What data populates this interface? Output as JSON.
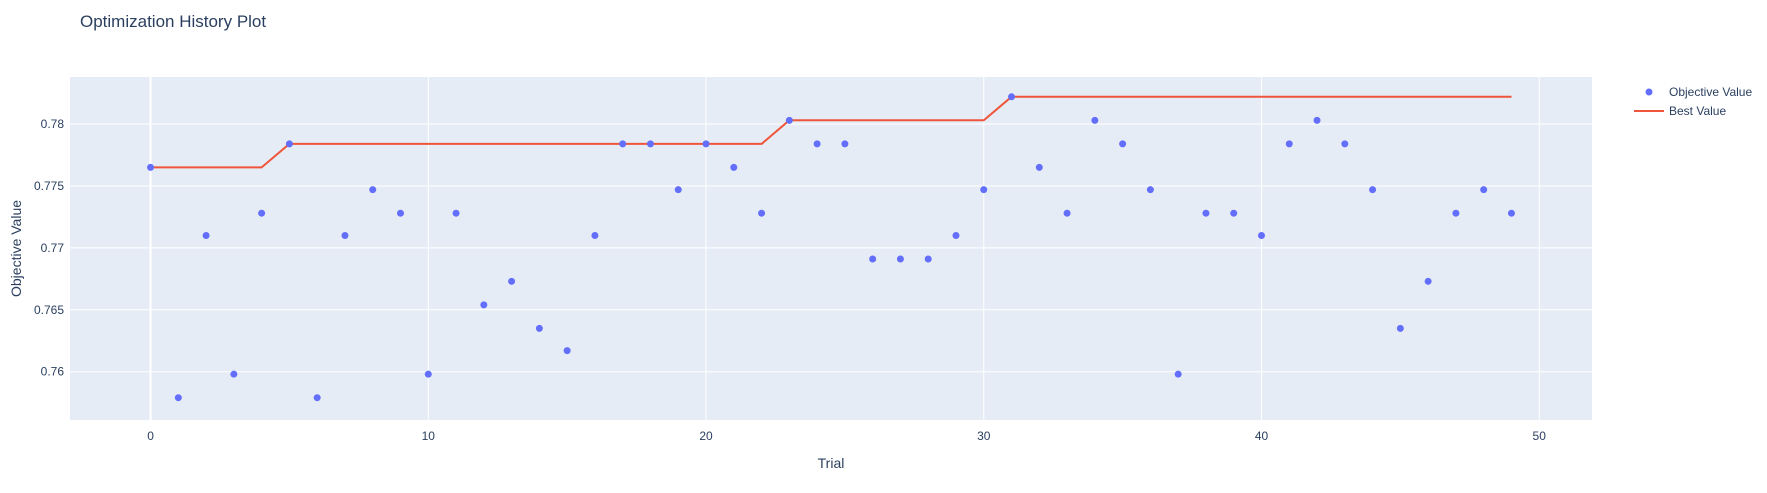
{
  "chart_data": {
    "type": "scatter",
    "title": "Optimization History Plot",
    "xlabel": "Trial",
    "ylabel": "Objective Value",
    "xlim": [
      -2.9,
      51.9
    ],
    "ylim": [
      0.7561,
      0.7838
    ],
    "x_ticks": [
      0,
      10,
      20,
      30,
      40,
      50
    ],
    "y_ticks": [
      0.76,
      0.765,
      0.77,
      0.775,
      0.78
    ],
    "y_tick_labels": [
      "0.76",
      "0.765",
      "0.77",
      "0.775",
      "0.78"
    ],
    "grid": true,
    "legend_position": "top-right",
    "series": [
      {
        "name": "Objective Value",
        "mode": "markers",
        "color": "#636efa",
        "x": [
          0,
          1,
          2,
          3,
          4,
          5,
          6,
          7,
          8,
          9,
          10,
          11,
          12,
          13,
          14,
          15,
          16,
          17,
          18,
          19,
          20,
          21,
          22,
          23,
          24,
          25,
          26,
          27,
          28,
          29,
          30,
          31,
          32,
          33,
          34,
          35,
          36,
          37,
          38,
          39,
          40,
          41,
          42,
          43,
          44,
          45,
          46,
          47,
          48,
          49
        ],
        "y": [
          0.7765,
          0.7579,
          0.771,
          0.7598,
          0.7728,
          0.7784,
          0.7579,
          0.771,
          0.7747,
          0.7728,
          0.7598,
          0.7728,
          0.7654,
          0.7673,
          0.7635,
          0.7617,
          0.771,
          0.7784,
          0.7784,
          0.7747,
          0.7784,
          0.7765,
          0.7728,
          0.7803,
          0.7784,
          0.7784,
          0.7691,
          0.7691,
          0.7691,
          0.771,
          0.7747,
          0.7822,
          0.7765,
          0.7728,
          0.7803,
          0.7784,
          0.7747,
          0.7598,
          0.7728,
          0.7728,
          0.771,
          0.7784,
          0.7803,
          0.7784,
          0.7747,
          0.7635,
          0.7673,
          0.7728,
          0.7747,
          0.7728
        ]
      },
      {
        "name": "Best Value",
        "mode": "lines",
        "color": "#ef553b",
        "x": [
          0,
          1,
          2,
          3,
          4,
          5,
          6,
          7,
          8,
          9,
          10,
          11,
          12,
          13,
          14,
          15,
          16,
          17,
          18,
          19,
          20,
          21,
          22,
          23,
          24,
          25,
          26,
          27,
          28,
          29,
          30,
          31,
          32,
          33,
          34,
          35,
          36,
          37,
          38,
          39,
          40,
          41,
          42,
          43,
          44,
          45,
          46,
          47,
          48,
          49
        ],
        "y": [
          0.7765,
          0.7765,
          0.7765,
          0.7765,
          0.7765,
          0.7784,
          0.7784,
          0.7784,
          0.7784,
          0.7784,
          0.7784,
          0.7784,
          0.7784,
          0.7784,
          0.7784,
          0.7784,
          0.7784,
          0.7784,
          0.7784,
          0.7784,
          0.7784,
          0.7784,
          0.7784,
          0.7803,
          0.7803,
          0.7803,
          0.7803,
          0.7803,
          0.7803,
          0.7803,
          0.7803,
          0.7822,
          0.7822,
          0.7822,
          0.7822,
          0.7822,
          0.7822,
          0.7822,
          0.7822,
          0.7822,
          0.7822,
          0.7822,
          0.7822,
          0.7822,
          0.7822,
          0.7822,
          0.7822,
          0.7822,
          0.7822,
          0.7822
        ]
      }
    ]
  },
  "colors": {
    "plot_bg": "#e5ecf6",
    "grid": "#ffffff",
    "text": "#2a3f5f"
  }
}
